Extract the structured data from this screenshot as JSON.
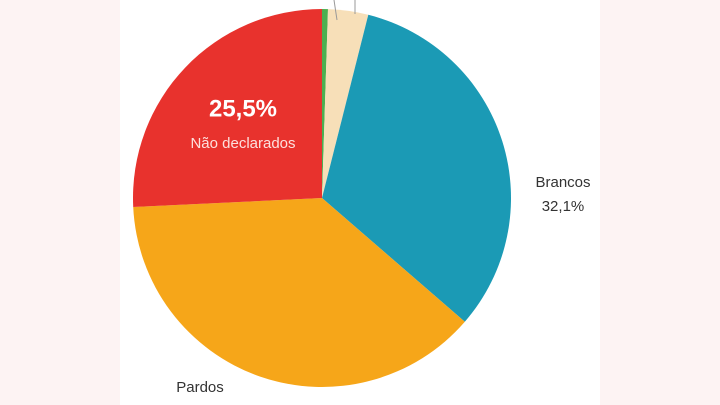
{
  "chart_data": {
    "type": "pie",
    "categories": [
      null,
      null,
      "Brancos",
      "Pardos",
      "Não declarados"
    ],
    "values": [
      0.5,
      3.4,
      32.1,
      37.5,
      25.5
    ],
    "value_labels": [
      null,
      null,
      "32,1%",
      null,
      "25,5%"
    ],
    "colors": [
      "#4caf50",
      "#f7dfb8",
      "#1b9ab5",
      "#f6a619",
      "#e8322d"
    ]
  }
}
